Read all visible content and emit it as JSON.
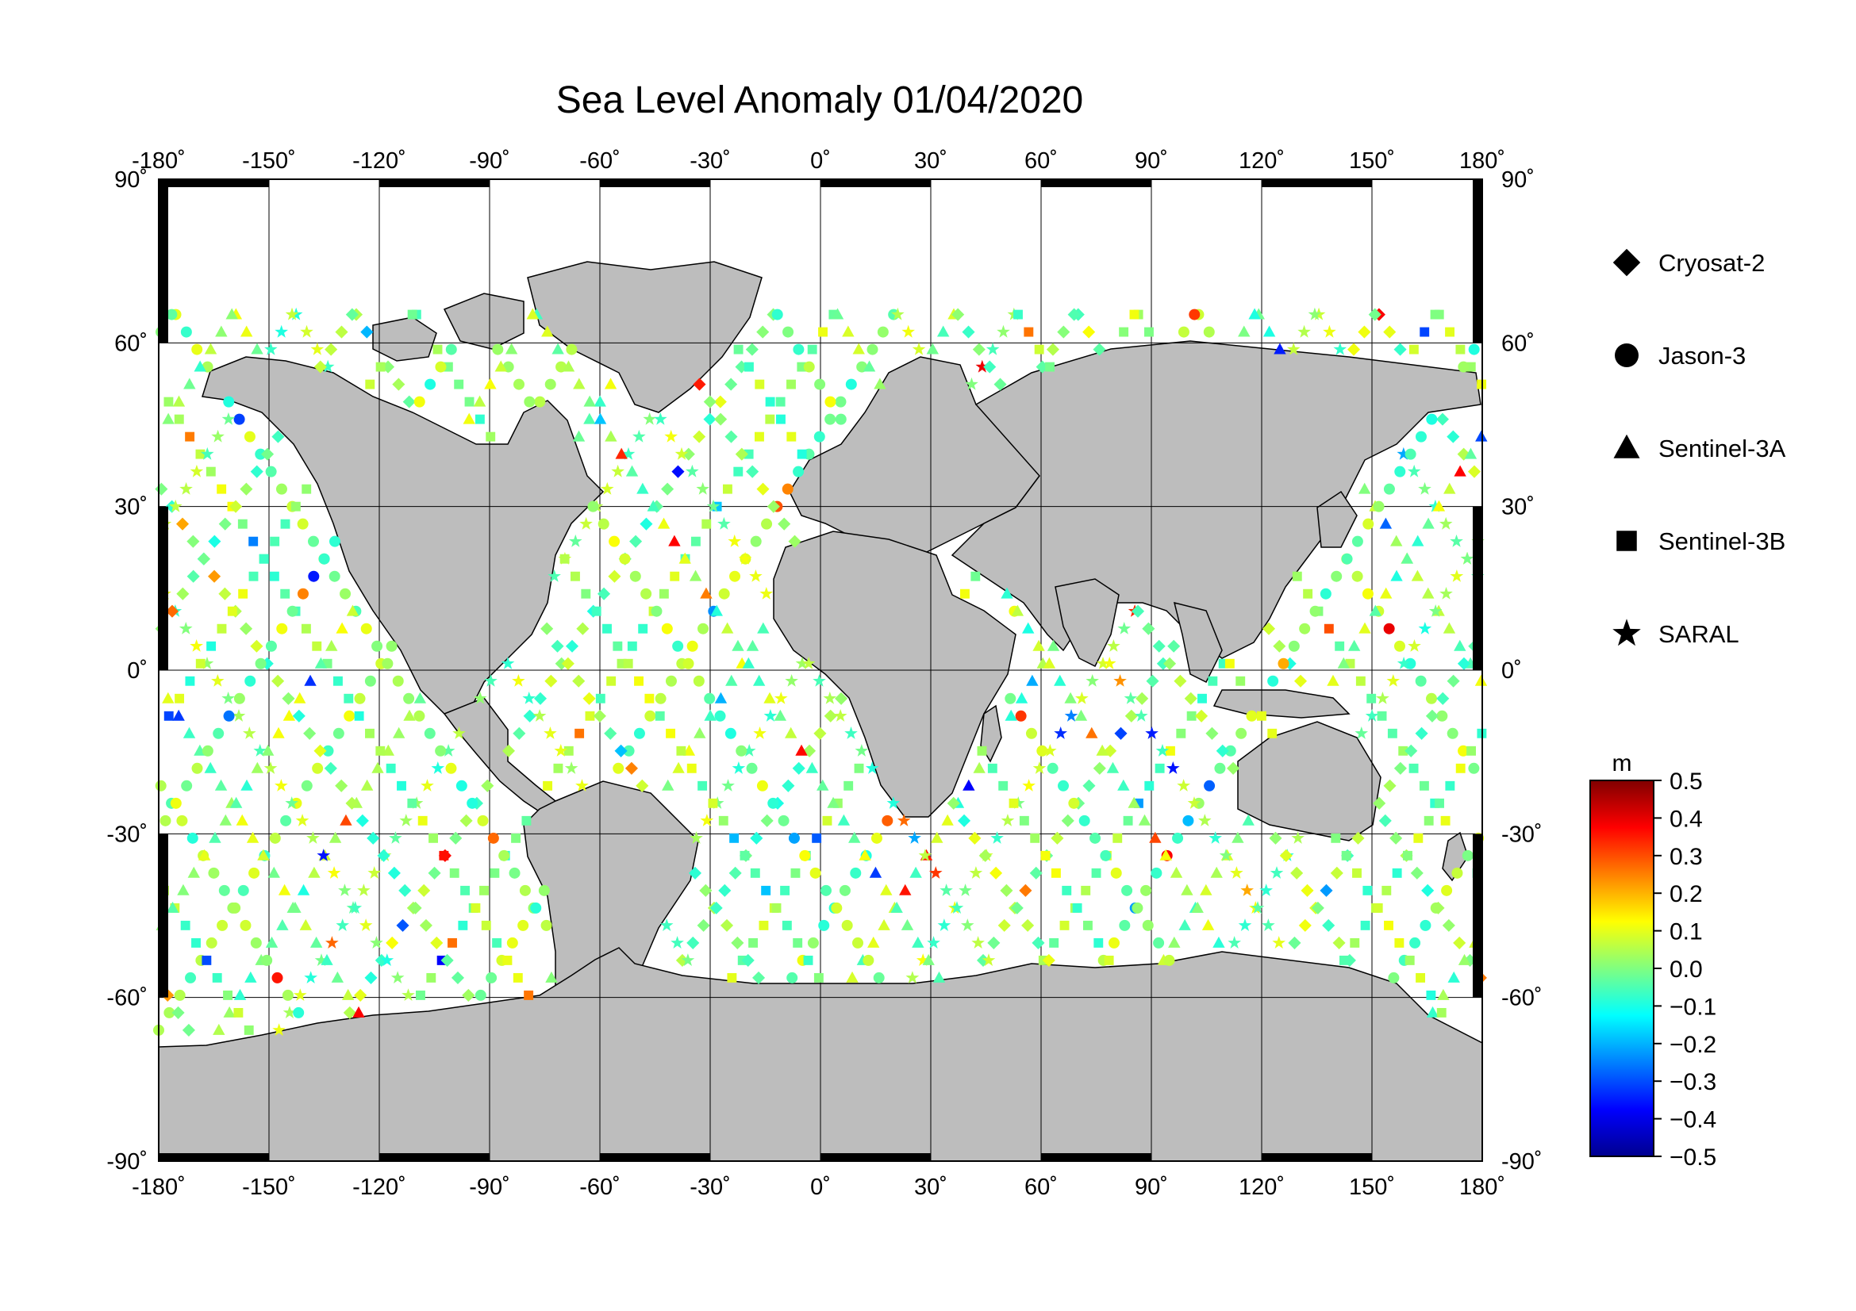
{
  "title": "Sea Level Anomaly 01/04/2020",
  "map": {
    "projection": "equirectangular",
    "lon_range": [
      -180,
      180
    ],
    "lat_range": [
      -90,
      90
    ],
    "grid_step_degrees": 30,
    "land_color": "#bdbdbd",
    "ocean_color": "#ffffff",
    "lon_ticks": [
      "-180˚",
      "-150˚",
      "-120˚",
      "-90˚",
      "-60˚",
      "-30˚",
      "0˚",
      "30˚",
      "60˚",
      "90˚",
      "120˚",
      "150˚",
      "180˚"
    ],
    "lat_ticks": [
      "90˚",
      "60˚",
      "30˚",
      "0˚",
      "-30˚",
      "-60˚",
      "-90˚"
    ]
  },
  "legend": {
    "items": [
      {
        "label": "Cryosat-2",
        "symbol": "diamond"
      },
      {
        "label": "Jason-3",
        "symbol": "circle"
      },
      {
        "label": "Sentinel-3A",
        "symbol": "triangle"
      },
      {
        "label": "Sentinel-3B",
        "symbol": "square"
      },
      {
        "label": "SARAL",
        "symbol": "star"
      }
    ]
  },
  "colorbar": {
    "unit": "m",
    "min": -0.5,
    "max": 0.5,
    "tick_labels": [
      "0.5",
      "0.4",
      "0.3",
      "0.2",
      "0.1",
      "0.0",
      "−0.1",
      "−0.2",
      "−0.3",
      "−0.4",
      "−0.5"
    ],
    "colormap": [
      "#00008f",
      "#0000ff",
      "#0080ff",
      "#00ffff",
      "#80ff80",
      "#ffff00",
      "#ff8000",
      "#ff0000",
      "#800000"
    ]
  }
}
